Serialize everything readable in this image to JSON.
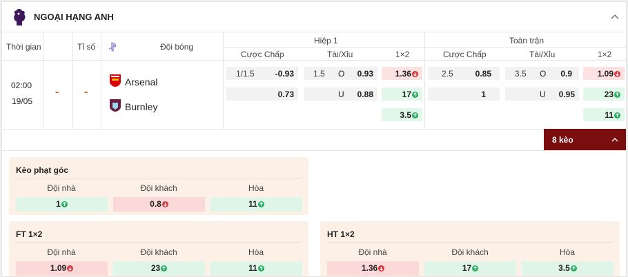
{
  "league": {
    "title": "NGOẠI HẠNG ANH",
    "logo_icon": "premier-league-icon"
  },
  "headers": {
    "time": "Thời gian",
    "score": "Tỉ số",
    "team": "Đội bóng",
    "half": "Hiệp 1",
    "full": "Toàn trận",
    "handicap": "Cược Chấp",
    "overunder": "Tài/Xỉu",
    "onextwo": "1×2"
  },
  "match": {
    "time": "02:00",
    "date": "19/05",
    "score_home": "-",
    "score_away": "-",
    "home": "Arsenal",
    "away": "Burnley"
  },
  "half_odds": {
    "hdp_line": "1/1.5",
    "hdp_home": "-0.93",
    "hdp_away": "0.73",
    "ou_line": "1.5",
    "ou_o_label": "O",
    "ou_over": "0.93",
    "ou_u_label": "U",
    "ou_under": "0.88",
    "x1": "1.36",
    "x2": "17",
    "xdraw": "3.5"
  },
  "full_odds": {
    "hdp_line": "2.5",
    "hdp_home": "0.85",
    "hdp_away": "1",
    "ou_line": "3.5",
    "ou_o_label": "O",
    "ou_over": "0.9",
    "ou_u_label": "U",
    "ou_under": "0.95",
    "x1": "1.09",
    "x2": "23",
    "xdraw": "11"
  },
  "more_button": {
    "label": "8 kèo"
  },
  "markets": {
    "corner": {
      "title": "Kèo phạt góc",
      "cols": [
        "Đội nhà",
        "Đội khách",
        "Hòa"
      ],
      "values": [
        "1",
        "0.8",
        "11"
      ]
    },
    "ft": {
      "title": "FT 1×2",
      "cols": [
        "Đội nhà",
        "Đội khách",
        "Hòa"
      ],
      "values": [
        "1.09",
        "23",
        "11"
      ]
    },
    "ht": {
      "title": "HT 1×2",
      "cols": [
        "Đội nhà",
        "Đội khách",
        "Hòa"
      ],
      "values": [
        "1.36",
        "17",
        "3.5"
      ]
    }
  },
  "colors": {
    "accent": "#7a0d0d",
    "up": "#27ae60",
    "down": "#d9363e"
  }
}
